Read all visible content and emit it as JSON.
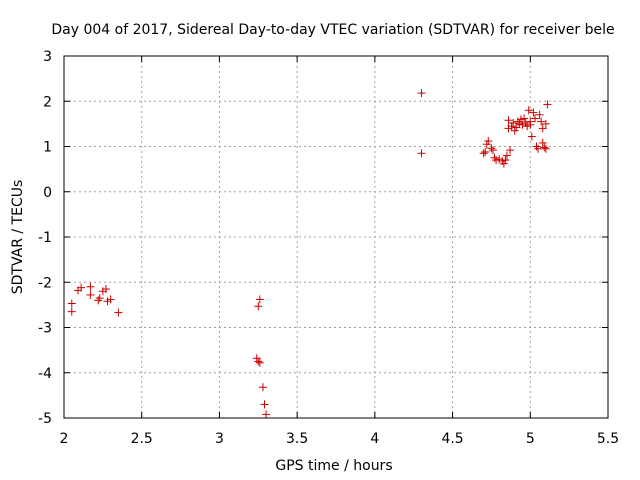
{
  "chart_data": {
    "type": "scatter",
    "title": "Day 004 of 2017, Sidereal Day-to-day VTEC variation (SDTVAR) for receiver bele",
    "xlabel": "GPS time / hours",
    "ylabel": "SDTVAR / TECUs",
    "xlim": [
      2,
      5.5
    ],
    "ylim": [
      -5,
      3
    ],
    "xticks": [
      2,
      2.5,
      3,
      3.5,
      4,
      4.5,
      5,
      5.5
    ],
    "yticks": [
      -5,
      -4,
      -3,
      -2,
      -1,
      0,
      1,
      2,
      3
    ],
    "xtick_labels": [
      "2",
      "2.5",
      "3",
      "3.5",
      "4",
      "4.5",
      "5",
      "5.5"
    ],
    "ytick_labels": [
      "-5",
      "-4",
      "-3",
      "-2",
      "-1",
      "0",
      "1",
      "2",
      "3"
    ],
    "grid": true,
    "marker": "+",
    "color": "#cc0000",
    "series": [
      {
        "name": "SDTVAR",
        "x": [
          2.05,
          2.05,
          2.09,
          2.11,
          2.17,
          2.17,
          2.22,
          2.23,
          2.25,
          2.27,
          2.28,
          2.3,
          2.35,
          3.24,
          3.25,
          3.25,
          3.26,
          3.26,
          3.28,
          3.29,
          3.3,
          4.3,
          4.3,
          4.7,
          4.71,
          4.72,
          4.73,
          4.75,
          4.76,
          4.77,
          4.78,
          4.8,
          4.82,
          4.83,
          4.84,
          4.85,
          4.86,
          4.86,
          4.87,
          4.88,
          4.89,
          4.9,
          4.91,
          4.92,
          4.93,
          4.94,
          4.95,
          4.96,
          4.97,
          4.98,
          4.99,
          5.0,
          5.0,
          5.01,
          5.02,
          5.03,
          5.04,
          5.05,
          5.06,
          5.07,
          5.08,
          5.08,
          5.09,
          5.1,
          5.1,
          5.11
        ],
        "y": [
          -2.47,
          -2.65,
          -2.18,
          -2.12,
          -2.1,
          -2.28,
          -2.4,
          -2.35,
          -2.2,
          -2.15,
          -2.42,
          -2.38,
          -2.67,
          -3.68,
          -2.53,
          -3.75,
          -2.38,
          -3.78,
          -4.32,
          -4.7,
          -4.92,
          2.18,
          0.85,
          0.85,
          0.88,
          1.05,
          1.12,
          0.96,
          0.92,
          0.75,
          0.7,
          0.72,
          0.68,
          0.62,
          0.7,
          0.8,
          1.58,
          1.4,
          0.92,
          1.45,
          1.52,
          1.35,
          1.42,
          1.55,
          1.5,
          1.6,
          1.48,
          1.62,
          1.52,
          1.45,
          1.8,
          1.55,
          1.48,
          1.22,
          1.75,
          1.62,
          1.0,
          0.95,
          1.7,
          1.55,
          1.08,
          1.4,
          0.98,
          1.5,
          0.95,
          1.93
        ]
      }
    ]
  }
}
